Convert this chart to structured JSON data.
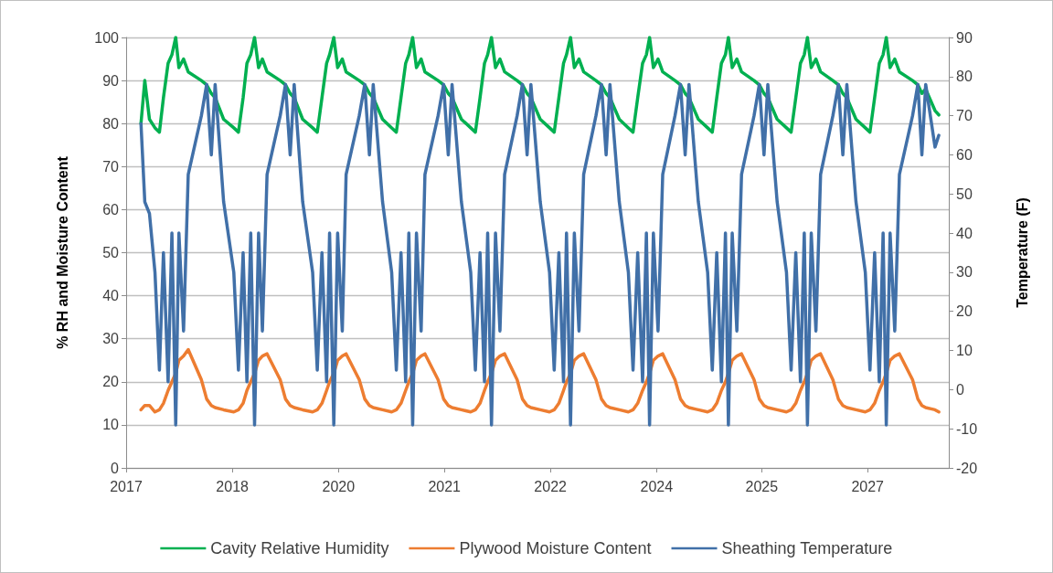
{
  "chart_data": {
    "type": "line",
    "xlabel": null,
    "ylabel": "% RH and Moisture Content",
    "y2label": "Temperature (F)",
    "xlim": [
      "2017-07-02",
      "2028-02-17"
    ],
    "xticks": [
      {
        "value": "2017-07-02",
        "label": "2017"
      },
      {
        "value": "2018-11-15",
        "label": "2018"
      },
      {
        "value": "2020-03-30",
        "label": "2020"
      },
      {
        "value": "2021-08-12",
        "label": "2021"
      },
      {
        "value": "2022-12-25",
        "label": "2022"
      },
      {
        "value": "2024-05-09",
        "label": "2024"
      },
      {
        "value": "2025-09-17",
        "label": "2025"
      },
      {
        "value": "2027-01-30",
        "label": "2027"
      }
    ],
    "ylim": [
      0,
      100
    ],
    "yticks": [
      0,
      10,
      20,
      30,
      40,
      50,
      60,
      70,
      80,
      90,
      100
    ],
    "y2lim": [
      -20,
      90
    ],
    "y2ticks": [
      -20,
      -10,
      0,
      10,
      20,
      30,
      40,
      50,
      60,
      70,
      80,
      90
    ],
    "grid": "y",
    "legend": "bottom",
    "x": [
      "2017-09-10",
      "2017-09-28",
      "2017-10-20",
      "2017-11-15",
      "2017-12-06",
      "2017-12-25",
      "2018-01-16",
      "2018-02-03",
      "2018-02-21",
      "2018-03-08",
      "2018-03-30",
      "2018-04-21",
      "2018-06-22",
      "2018-07-17",
      "2018-08-08",
      "2018-08-26",
      "2018-10-05",
      "2018-11-22",
      "2018-12-14",
      "2019-01-05",
      "2019-01-23",
      "2019-02-10",
      "2019-02-28",
      "2019-03-19",
      "2019-04-06",
      "2019-04-28",
      "2019-06-29",
      "2019-07-24",
      "2019-08-15",
      "2019-09-03",
      "2019-10-13",
      "2019-11-29",
      "2019-12-21",
      "2020-01-12",
      "2020-02-03",
      "2020-02-17",
      "2020-03-08",
      "2020-03-26",
      "2020-04-17",
      "2020-05-05",
      "2020-07-06",
      "2020-08-01",
      "2020-08-23",
      "2020-09-10",
      "2020-10-24",
      "2020-12-06",
      "2020-12-28",
      "2021-01-19",
      "2021-02-10",
      "2021-02-25",
      "2021-03-15",
      "2021-04-02",
      "2021-04-24",
      "2021-05-12",
      "2021-07-13",
      "2021-08-08",
      "2021-08-30",
      "2021-09-17",
      "2021-10-31",
      "2021-12-14",
      "2022-01-05",
      "2022-01-27",
      "2022-02-17",
      "2022-03-04",
      "2022-03-22",
      "2022-04-10",
      "2022-05-01",
      "2022-05-23",
      "2022-07-21",
      "2022-08-15",
      "2022-09-06",
      "2022-09-24",
      "2022-11-07",
      "2022-12-21",
      "2023-01-12",
      "2023-02-03",
      "2023-02-25",
      "2023-03-11",
      "2023-03-30",
      "2023-04-17",
      "2023-05-09",
      "2023-05-31",
      "2023-07-28",
      "2023-08-23",
      "2023-09-14",
      "2023-10-02",
      "2023-11-15",
      "2023-12-28",
      "2024-01-19",
      "2024-02-10",
      "2024-03-04",
      "2024-03-22",
      "2024-04-06",
      "2024-04-24",
      "2024-05-16",
      "2024-06-07",
      "2024-08-04",
      "2024-08-30",
      "2024-09-21",
      "2024-10-09",
      "2024-11-22",
      "2025-01-05",
      "2025-01-27",
      "2025-02-17",
      "2025-03-11",
      "2025-03-30",
      "2025-04-13",
      "2025-05-01",
      "2025-05-23",
      "2025-06-14",
      "2025-08-12",
      "2025-09-06",
      "2025-09-28",
      "2025-10-16",
      "2025-11-29",
      "2026-01-12",
      "2026-02-03",
      "2026-02-25",
      "2026-03-19",
      "2026-04-06",
      "2026-04-21",
      "2026-05-09",
      "2026-05-31",
      "2026-06-22",
      "2026-08-19",
      "2026-09-14",
      "2026-10-05",
      "2026-10-24",
      "2026-12-06",
      "2027-01-19",
      "2027-02-10",
      "2027-03-04",
      "2027-03-26",
      "2027-04-13",
      "2027-04-28",
      "2027-05-16",
      "2027-06-07",
      "2027-06-29",
      "2027-08-30",
      "2027-09-24",
      "2027-10-13",
      "2027-10-31",
      "2027-12-14",
      "2028-01-01"
    ],
    "series": [
      {
        "name": "Cavity Relative Humidity",
        "color": "#00b050",
        "values": [
          80,
          90,
          81,
          79,
          78,
          86,
          94,
          96,
          100,
          93,
          95,
          92,
          90,
          89,
          87,
          86,
          81,
          79,
          78,
          86,
          94,
          96,
          100,
          93,
          95,
          92,
          90,
          89,
          87,
          86,
          81,
          79,
          78,
          86,
          94,
          96,
          100,
          93,
          95,
          92,
          90,
          89,
          87,
          86,
          81,
          79,
          78,
          86,
          94,
          96,
          100,
          93,
          95,
          92,
          90,
          89,
          87,
          86,
          81,
          79,
          78,
          86,
          94,
          96,
          100,
          93,
          95,
          92,
          90,
          89,
          87,
          86,
          81,
          79,
          78,
          86,
          94,
          96,
          100,
          93,
          95,
          92,
          90,
          89,
          87,
          86,
          81,
          79,
          78,
          86,
          94,
          96,
          100,
          93,
          95,
          92,
          90,
          89,
          87,
          86,
          81,
          79,
          78,
          86,
          94,
          96,
          100,
          93,
          95,
          92,
          90,
          89,
          87,
          86,
          81,
          79,
          78,
          86,
          94,
          96,
          100,
          93,
          95,
          92,
          90,
          89,
          87,
          86,
          81,
          79,
          78,
          86,
          94,
          96,
          100,
          93,
          95,
          92,
          90,
          89,
          87,
          88,
          83,
          82
        ]
      },
      {
        "name": "Plywood Moisture Content",
        "color": "#ed7d31",
        "values": [
          13.5,
          14.5,
          14.5,
          13,
          13.5,
          15,
          18,
          20,
          22,
          25,
          26,
          27.5,
          20.5,
          16,
          14.5,
          14,
          13.5,
          13,
          13.5,
          15,
          18,
          20,
          22,
          25,
          26,
          26.5,
          20.5,
          16,
          14.5,
          14,
          13.5,
          13,
          13.5,
          15,
          18,
          20,
          22,
          25,
          26,
          26.5,
          20.5,
          16,
          14.5,
          14,
          13.5,
          13,
          13.5,
          15,
          18,
          20,
          22,
          25,
          26,
          26.5,
          20.5,
          16,
          14.5,
          14,
          13.5,
          13,
          13.5,
          15,
          18,
          20,
          22,
          25,
          26,
          26.5,
          20.5,
          16,
          14.5,
          14,
          13.5,
          13,
          13.5,
          15,
          18,
          20,
          22,
          25,
          26,
          26.5,
          20.5,
          16,
          14.5,
          14,
          13.5,
          13,
          13.5,
          15,
          18,
          20,
          22,
          25,
          26,
          26.5,
          20.5,
          16,
          14.5,
          14,
          13.5,
          13,
          13.5,
          15,
          18,
          20,
          22,
          25,
          26,
          26.5,
          20.5,
          16,
          14.5,
          14,
          13.5,
          13,
          13.5,
          15,
          18,
          20,
          22,
          25,
          26,
          26.5,
          20.5,
          16,
          14.5,
          14,
          13.5,
          13,
          13.5,
          15,
          18,
          20,
          22,
          25,
          26,
          26.5,
          20.5,
          16,
          14.5,
          14,
          13.5,
          13
        ]
      },
      {
        "name": "Sheathing Temperature",
        "color": "#4170a8",
        "axis": "y2",
        "values": [
          68,
          48,
          45,
          30,
          5,
          35,
          2,
          40,
          -9,
          40,
          15,
          55,
          70,
          78,
          60,
          78,
          48,
          30,
          5,
          35,
          2,
          40,
          -9,
          40,
          15,
          55,
          70,
          78,
          60,
          78,
          48,
          30,
          5,
          35,
          2,
          40,
          -9,
          40,
          15,
          55,
          70,
          78,
          60,
          78,
          48,
          30,
          5,
          35,
          2,
          40,
          -9,
          40,
          15,
          55,
          70,
          78,
          60,
          78,
          48,
          30,
          5,
          35,
          2,
          40,
          -9,
          40,
          15,
          55,
          70,
          78,
          60,
          78,
          48,
          30,
          5,
          35,
          2,
          40,
          -9,
          40,
          15,
          55,
          70,
          78,
          60,
          78,
          48,
          30,
          5,
          35,
          2,
          40,
          -9,
          40,
          15,
          55,
          70,
          78,
          60,
          78,
          48,
          30,
          5,
          35,
          2,
          40,
          -9,
          40,
          15,
          55,
          70,
          78,
          60,
          78,
          48,
          30,
          5,
          35,
          2,
          40,
          -9,
          40,
          15,
          55,
          70,
          78,
          60,
          78,
          48,
          30,
          5,
          35,
          2,
          40,
          -9,
          40,
          15,
          55,
          70,
          78,
          60,
          78,
          62,
          65
        ]
      }
    ]
  }
}
